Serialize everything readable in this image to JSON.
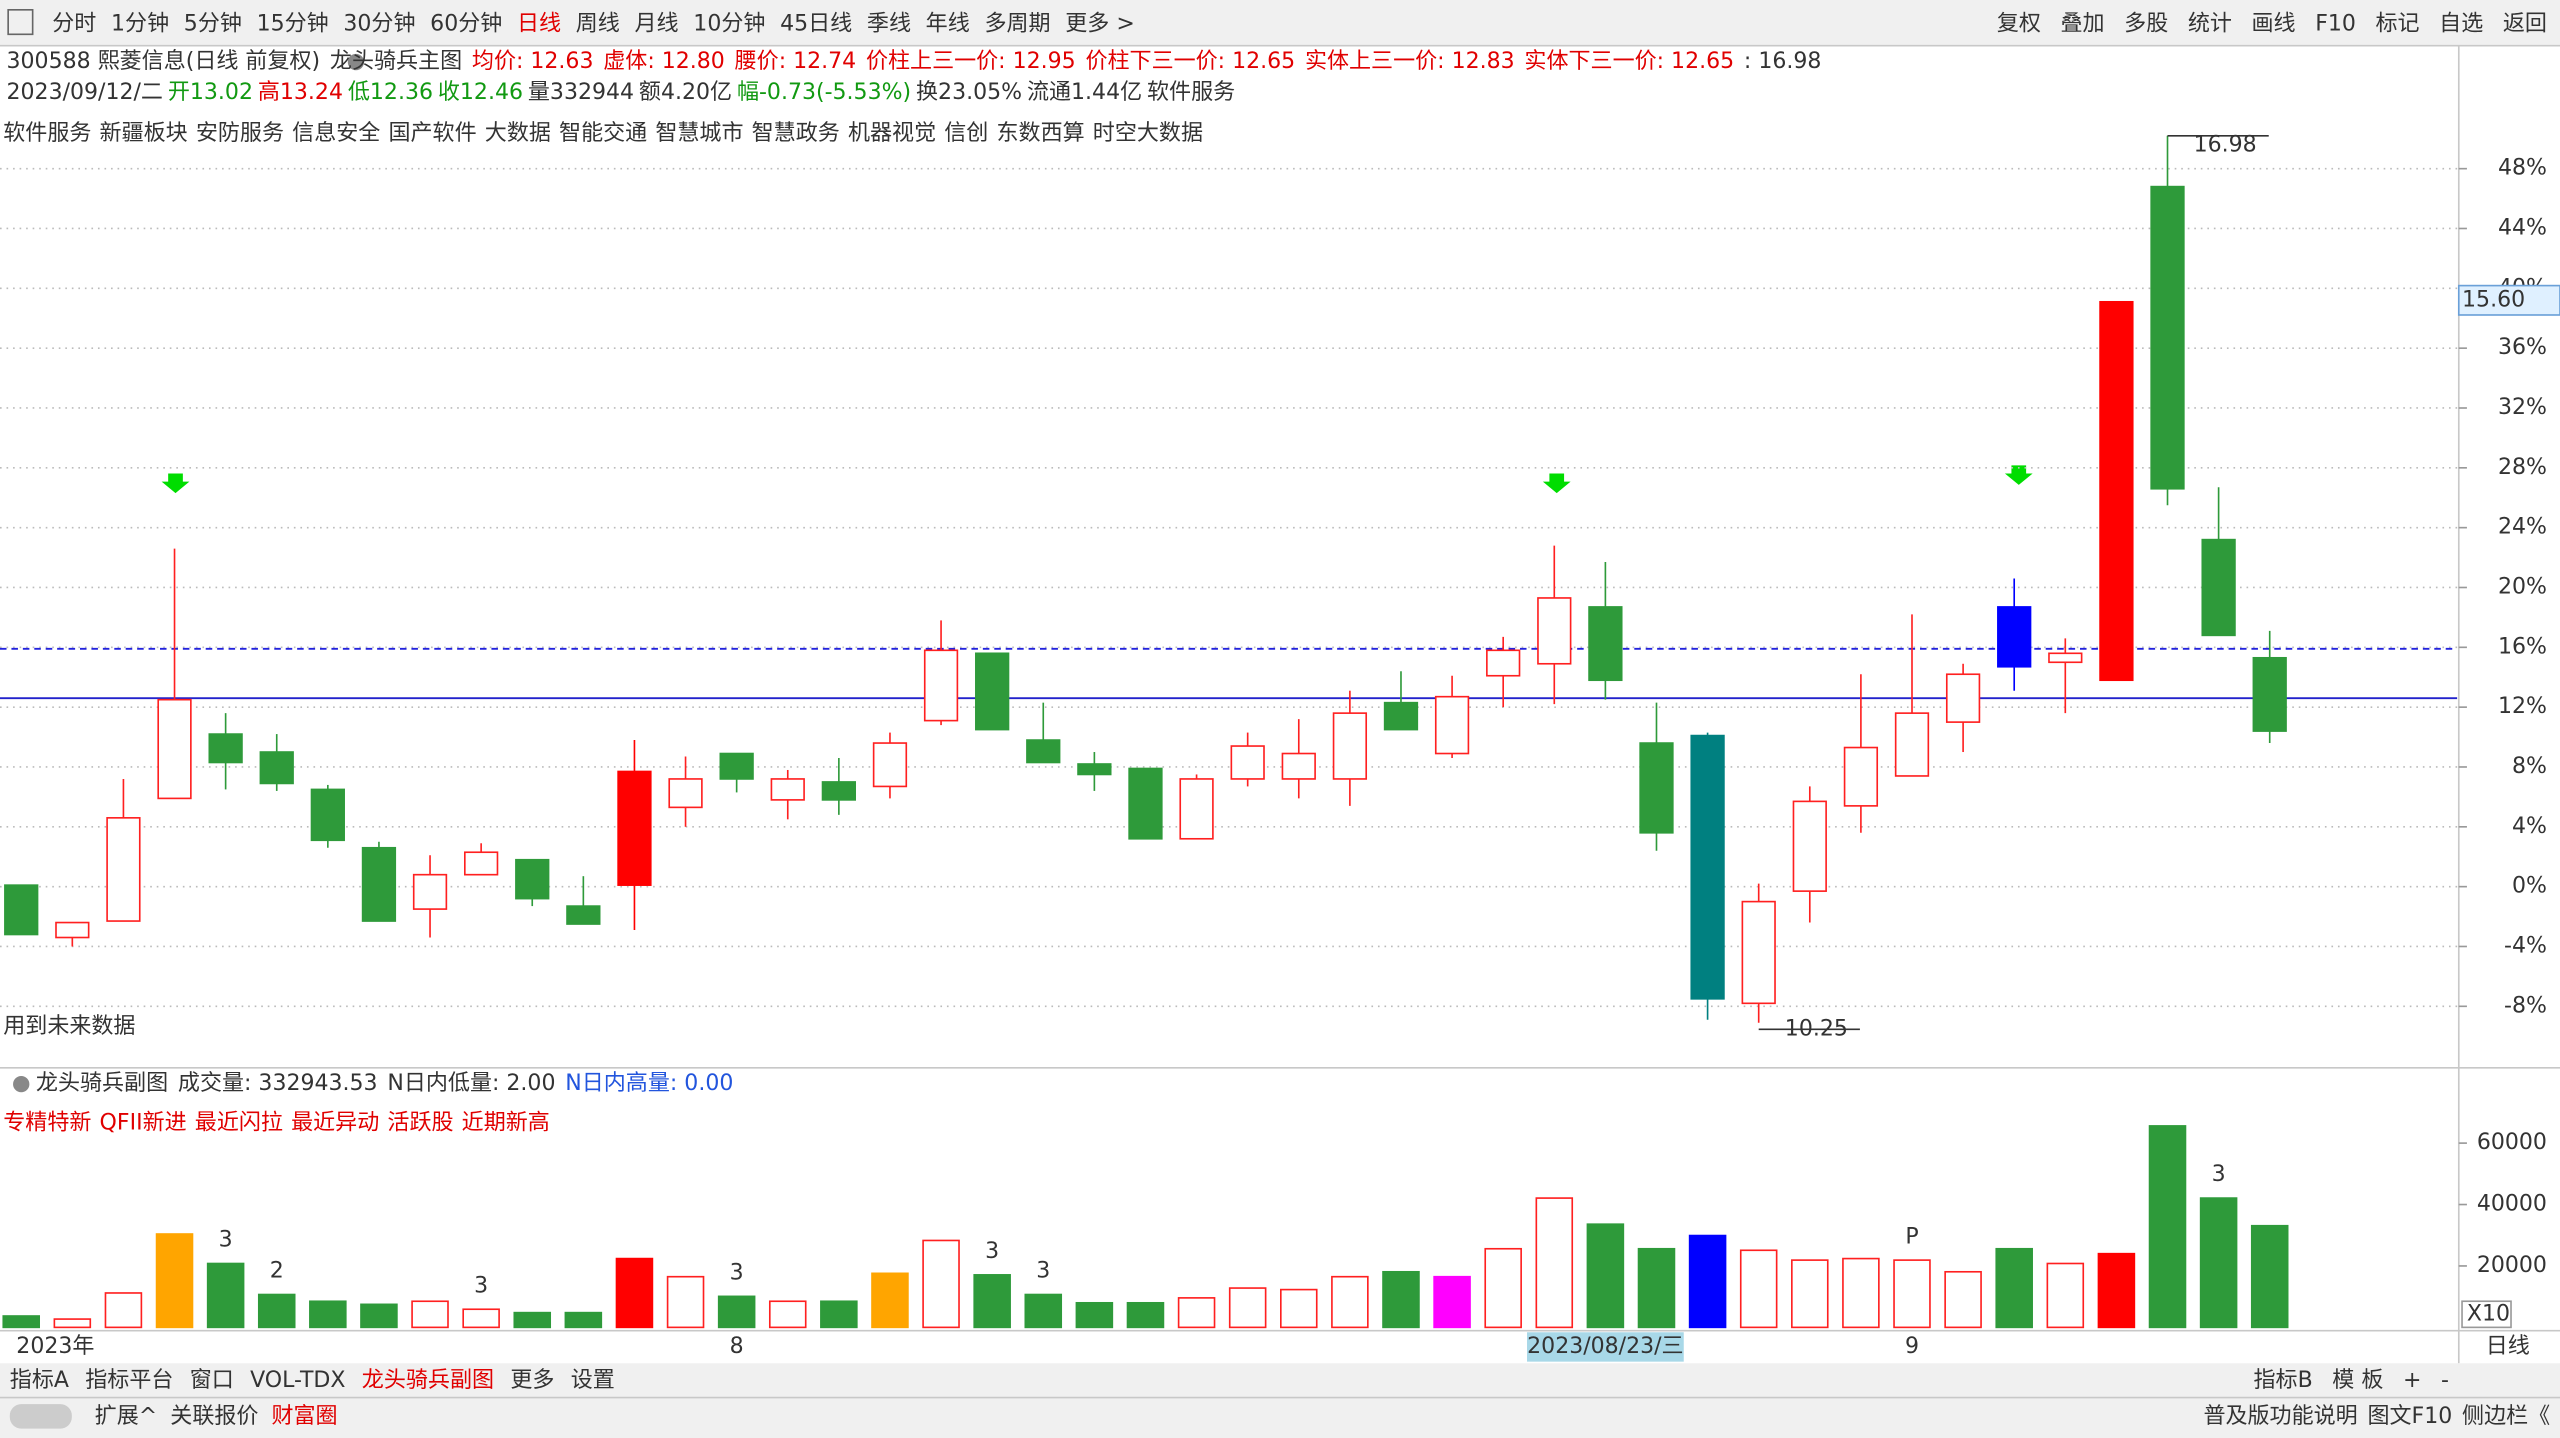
{
  "toolbar": {
    "tabs": [
      {
        "label": "分时",
        "active": false
      },
      {
        "label": "1分钟",
        "active": false
      },
      {
        "label": "5分钟",
        "active": false
      },
      {
        "label": "15分钟",
        "active": false
      },
      {
        "label": "30分钟",
        "active": false
      },
      {
        "label": "60分钟",
        "active": false
      },
      {
        "label": "日线",
        "active": true
      },
      {
        "label": "周线",
        "active": false
      },
      {
        "label": "月线",
        "active": false
      },
      {
        "label": "10分钟",
        "active": false
      },
      {
        "label": "45日线",
        "active": false
      },
      {
        "label": "季线",
        "active": false
      },
      {
        "label": "年线",
        "active": false
      },
      {
        "label": "多周期",
        "active": false
      },
      {
        "label": "更多 >",
        "active": false
      }
    ],
    "right": [
      "复权",
      "叠加",
      "多股",
      "统计",
      "画线",
      "F10",
      "标记",
      "自选",
      "返回"
    ]
  },
  "header": {
    "line1": [
      {
        "text": "300588 熙菱信息(日线 前复权)",
        "color": "#333333"
      },
      {
        "text": "龙头骑兵主图",
        "color": "#333333"
      },
      {
        "text": "均价: 12.63",
        "color": "#e00000"
      },
      {
        "text": "虚体: 12.80",
        "color": "#e00000"
      },
      {
        "text": "腰价: 12.74",
        "color": "#e00000"
      },
      {
        "text": "价柱上三一价: 12.95",
        "color": "#e00000"
      },
      {
        "text": "价柱下三一价: 12.65",
        "color": "#e00000"
      },
      {
        "text": "实体上三一价: 12.83",
        "color": "#e00000"
      },
      {
        "text": "实体下三一价: 12.65",
        "color": "#e00000"
      },
      {
        "text": ": 16.98",
        "color": "#333333"
      }
    ],
    "line2": [
      {
        "text": "2023/09/12/二",
        "color": "#333333"
      },
      {
        "text": "开13.02",
        "color": "#119911"
      },
      {
        "text": "高13.24",
        "color": "#e00000"
      },
      {
        "text": "低12.36",
        "color": "#119911"
      },
      {
        "text": "收12.46",
        "color": "#119911"
      },
      {
        "text": "量332944",
        "color": "#333333"
      },
      {
        "text": "额4.20亿",
        "color": "#333333"
      },
      {
        "text": "幅-0.73(-5.53%)",
        "color": "#119911"
      },
      {
        "text": "换23.05%",
        "color": "#333333"
      },
      {
        "text": "流通1.44亿",
        "color": "#333333"
      },
      {
        "text": "软件服务",
        "color": "#333333"
      }
    ],
    "concepts": [
      "软件服务",
      "新疆板块",
      "安防服务",
      "信息安全",
      "国产软件",
      "大数据",
      "智能交通",
      "智慧城市",
      "智慧政务",
      "机器视觉",
      "信创",
      "东数西算",
      "时空大数据"
    ],
    "note": "用到未来数据"
  },
  "chart_data": {
    "type": "candlestick",
    "categories": [
      "2023年",
      null,
      null,
      null,
      null,
      null,
      null,
      null,
      null,
      null,
      null,
      null,
      null,
      null,
      "8",
      null,
      null,
      null,
      null,
      null,
      null,
      null,
      null,
      null,
      null,
      null,
      null,
      null,
      null,
      null,
      null,
      "2023/08/23/三",
      null,
      null,
      null,
      null,
      null,
      "9",
      null,
      null,
      null,
      null,
      null,
      null,
      null
    ],
    "candles": [
      {
        "open": 0.1,
        "high": 0.1,
        "low": -3.2,
        "close": -3.2,
        "color": "#2e9a3a",
        "filled": true
      },
      {
        "open": -3.4,
        "high": -2.4,
        "low": -4.0,
        "close": -2.4,
        "color": "#ff2020",
        "filled": false
      },
      {
        "open": -2.3,
        "high": 7.2,
        "low": -2.3,
        "close": 4.6,
        "color": "#ff2020",
        "filled": false
      },
      {
        "open": 5.9,
        "high": 22.6,
        "low": 5.9,
        "close": 12.5,
        "color": "#ff2020",
        "filled": false
      },
      {
        "open": 10.2,
        "high": 11.6,
        "low": 6.5,
        "close": 8.3,
        "color": "#2e9a3a",
        "filled": true
      },
      {
        "open": 9.0,
        "high": 10.2,
        "low": 6.4,
        "close": 6.9,
        "color": "#2e9a3a",
        "filled": true
      },
      {
        "open": 6.5,
        "high": 6.8,
        "low": 2.6,
        "close": 3.1,
        "color": "#2e9a3a",
        "filled": true
      },
      {
        "open": 2.6,
        "high": 3.0,
        "low": -2.3,
        "close": -2.3,
        "color": "#2e9a3a",
        "filled": true
      },
      {
        "open": -1.5,
        "high": 2.1,
        "low": -3.4,
        "close": 0.8,
        "color": "#ff2020",
        "filled": false
      },
      {
        "open": 0.8,
        "high": 2.9,
        "low": 0.8,
        "close": 2.3,
        "color": "#ff2020",
        "filled": false
      },
      {
        "open": 1.8,
        "high": 1.8,
        "low": -1.3,
        "close": -0.8,
        "color": "#2e9a3a",
        "filled": true
      },
      {
        "open": -1.3,
        "high": 0.7,
        "low": -2.5,
        "close": -2.5,
        "color": "#2e9a3a",
        "filled": true
      },
      {
        "open": 0.1,
        "high": 9.8,
        "low": -2.9,
        "close": 7.7,
        "color": "#ff0000",
        "filled": true
      },
      {
        "open": 5.3,
        "high": 8.7,
        "low": 4.0,
        "close": 7.2,
        "color": "#ff2020",
        "filled": false
      },
      {
        "open": 8.9,
        "high": 8.9,
        "low": 6.3,
        "close": 7.2,
        "color": "#2e9a3a",
        "filled": true
      },
      {
        "open": 5.8,
        "high": 7.8,
        "low": 4.5,
        "close": 7.2,
        "color": "#ff2020",
        "filled": false
      },
      {
        "open": 7.0,
        "high": 8.6,
        "low": 4.8,
        "close": 5.8,
        "color": "#2e9a3a",
        "filled": true
      },
      {
        "open": 6.7,
        "high": 10.3,
        "low": 5.9,
        "close": 9.6,
        "color": "#ff2020",
        "filled": false
      },
      {
        "open": 11.1,
        "high": 17.8,
        "low": 10.8,
        "close": 15.8,
        "color": "#ff2020",
        "filled": false
      },
      {
        "open": 15.6,
        "high": 15.6,
        "low": 10.5,
        "close": 10.5,
        "color": "#2e9a3a",
        "filled": true
      },
      {
        "open": 9.8,
        "high": 12.3,
        "low": 8.3,
        "close": 8.3,
        "color": "#2e9a3a",
        "filled": true
      },
      {
        "open": 8.2,
        "high": 9.0,
        "low": 6.4,
        "close": 7.5,
        "color": "#2e9a3a",
        "filled": true
      },
      {
        "open": 7.9,
        "high": 7.9,
        "low": 3.2,
        "close": 3.2,
        "color": "#2e9a3a",
        "filled": true
      },
      {
        "open": 3.2,
        "high": 7.5,
        "low": 3.2,
        "close": 7.2,
        "color": "#ff2020",
        "filled": false
      },
      {
        "open": 7.2,
        "high": 10.3,
        "low": 6.7,
        "close": 9.4,
        "color": "#ff2020",
        "filled": false
      },
      {
        "open": 7.2,
        "high": 11.2,
        "low": 5.9,
        "close": 8.9,
        "color": "#ff2020",
        "filled": false
      },
      {
        "open": 7.2,
        "high": 13.1,
        "low": 5.4,
        "close": 11.6,
        "color": "#ff2020",
        "filled": false
      },
      {
        "open": 12.3,
        "high": 14.4,
        "low": 10.5,
        "close": 10.5,
        "color": "#2e9a3a",
        "filled": true
      },
      {
        "open": 8.9,
        "high": 14.1,
        "low": 8.6,
        "close": 12.7,
        "color": "#ff2020",
        "filled": false
      },
      {
        "open": 14.1,
        "high": 16.7,
        "low": 12.0,
        "close": 15.8,
        "color": "#ff2020",
        "filled": false
      },
      {
        "open": 14.9,
        "high": 22.8,
        "low": 12.2,
        "close": 19.3,
        "color": "#ff2020",
        "filled": false
      },
      {
        "open": 18.7,
        "high": 21.7,
        "low": 12.5,
        "close": 13.8,
        "color": "#2e9a3a",
        "filled": true
      },
      {
        "open": 9.6,
        "high": 12.3,
        "low": 2.4,
        "close": 3.6,
        "color": "#2e9a3a",
        "filled": true
      },
      {
        "open": 10.1,
        "high": 10.3,
        "low": -8.9,
        "close": -7.5,
        "color": "#008080",
        "filled": true
      },
      {
        "open": -7.8,
        "high": 0.2,
        "low": -9.1,
        "close": -1.0,
        "color": "#ff2020",
        "filled": false
      },
      {
        "open": -0.3,
        "high": 6.7,
        "low": -2.4,
        "close": 5.7,
        "color": "#ff2020",
        "filled": false
      },
      {
        "open": 5.4,
        "high": 14.2,
        "low": 3.6,
        "close": 9.3,
        "color": "#ff2020",
        "filled": false
      },
      {
        "open": 7.4,
        "high": 18.2,
        "low": 7.4,
        "close": 11.6,
        "color": "#ff2020",
        "filled": false
      },
      {
        "open": 11.0,
        "high": 14.9,
        "low": 9.0,
        "close": 14.2,
        "color": "#ff2020",
        "filled": false
      },
      {
        "open": 18.7,
        "high": 20.6,
        "low": 13.1,
        "close": 14.7,
        "color": "#0000ff",
        "filled": true
      },
      {
        "open": 15.0,
        "high": 16.6,
        "low": 11.6,
        "close": 15.6,
        "color": "#ff2020",
        "filled": false
      },
      {
        "open": 13.8,
        "high": 39.1,
        "low": 13.8,
        "close": 39.1,
        "color": "#ff0000",
        "filled": true
      },
      {
        "open": 46.8,
        "high": 50.2,
        "low": 25.5,
        "close": 26.6,
        "color": "#2e9a3a",
        "filled": true
      },
      {
        "open": 23.2,
        "high": 26.7,
        "low": 16.8,
        "close": 16.8,
        "color": "#2e9a3a",
        "filled": true
      },
      {
        "open": 15.3,
        "high": 17.1,
        "low": 9.6,
        "close": 10.4,
        "color": "#2e9a3a",
        "filled": true
      }
    ],
    "ylim": [
      -12,
      56
    ],
    "yticks": [
      {
        "value": 48,
        "label": "48%"
      },
      {
        "value": 44,
        "label": "44%"
      },
      {
        "value": 40,
        "label": "40%"
      },
      {
        "value": 36,
        "label": "36%"
      },
      {
        "value": 32,
        "label": "32%"
      },
      {
        "value": 28,
        "label": "28%"
      },
      {
        "value": 24,
        "label": "24%"
      },
      {
        "value": 20,
        "label": "20%"
      },
      {
        "value": 16,
        "label": "16%"
      },
      {
        "value": 12,
        "label": "12%"
      },
      {
        "value": 8,
        "label": "8%"
      },
      {
        "value": 4,
        "label": "4%"
      },
      {
        "value": 0,
        "label": "0%"
      },
      {
        "value": -4,
        "label": "-4%"
      },
      {
        "value": -8,
        "label": "-8%"
      }
    ],
    "grid": true,
    "ref_lines": [
      {
        "value": 15.9,
        "color": "#2222dd",
        "dashed": true
      },
      {
        "value": 12.6,
        "color": "#2222cc",
        "dashed": false
      }
    ],
    "cursor_label": {
      "value": 39.2,
      "label": "15.60"
    },
    "annotations": [
      {
        "candle": 42,
        "value": 50.2,
        "label": "16.98"
      },
      {
        "candle": 34,
        "value": -9.1,
        "label": "10.25"
      }
    ]
  },
  "sub_chart": {
    "title": "龙头骑兵副图",
    "stats": [
      {
        "text": "成交量: 332943.53",
        "color": "#333333"
      },
      {
        "text": "N日内低量: 2.00",
        "color": "#333333"
      },
      {
        "text": "N日内高量: 0.00",
        "color": "#2255dd"
      }
    ],
    "tags": [
      "专精特新",
      "QFII新进",
      "最近闪拉",
      "最近异动",
      "活跃股",
      "近期新高"
    ],
    "values": [
      3700,
      2700,
      11200,
      30400,
      20800,
      10700,
      8500,
      7500,
      8500,
      5900,
      4800,
      4800,
      22400,
      16500,
      10100,
      8500,
      8500,
      17600,
      28300,
      17100,
      10700,
      8000,
      8000,
      9600,
      12800,
      12300,
      16500,
      18100,
      16500,
      25600,
      42100,
      33600,
      25600,
      29900,
      25100,
      21900,
      22400,
      21900,
      18100,
      25600,
      20800,
      24000,
      65600,
      42100,
      33100
    ],
    "colors": [
      "#2e9a3a",
      "#ff2020",
      "#ff2020",
      "#ffa500",
      "#2e9a3a",
      "#2e9a3a",
      "#2e9a3a",
      "#2e9a3a",
      "#ff2020",
      "#ff2020",
      "#2e9a3a",
      "#2e9a3a",
      "#ff0000",
      "#ff2020",
      "#2e9a3a",
      "#ff2020",
      "#2e9a3a",
      "#ffa500",
      "#ff2020",
      "#2e9a3a",
      "#2e9a3a",
      "#2e9a3a",
      "#2e9a3a",
      "#ff2020",
      "#ff2020",
      "#ff2020",
      "#ff2020",
      "#2e9a3a",
      "#ff00ff",
      "#ff2020",
      "#ff2020",
      "#2e9a3a",
      "#2e9a3a",
      "#0000ff",
      "#ff2020",
      "#ff2020",
      "#ff2020",
      "#ff2020",
      "#ff2020",
      "#2e9a3a",
      "#ff2020",
      "#ff0000",
      "#2e9a3a",
      "#2e9a3a",
      "#2e9a3a"
    ],
    "filled": [
      true,
      false,
      false,
      true,
      true,
      true,
      true,
      true,
      false,
      false,
      true,
      true,
      true,
      false,
      true,
      false,
      true,
      true,
      false,
      true,
      true,
      true,
      true,
      false,
      false,
      false,
      false,
      true,
      true,
      false,
      false,
      true,
      true,
      true,
      false,
      false,
      false,
      false,
      false,
      true,
      false,
      true,
      true,
      true,
      true
    ],
    "labels": [
      null,
      null,
      null,
      null,
      "3",
      "2",
      null,
      null,
      null,
      "3",
      null,
      null,
      null,
      null,
      "3",
      null,
      null,
      null,
      null,
      "3",
      "3",
      null,
      null,
      null,
      null,
      null,
      null,
      null,
      null,
      null,
      null,
      null,
      null,
      null,
      null,
      null,
      null,
      "P",
      null,
      null,
      null,
      null,
      null,
      "3",
      null
    ],
    "ylim": [
      0,
      84000
    ],
    "yticks": [
      60000,
      40000,
      20000
    ],
    "scale_note": "X10"
  },
  "bottom_tabs": {
    "left": [
      "指标A",
      "指标平台",
      "窗口",
      "VOL-TDX",
      "龙头骑兵副图",
      "更多",
      "设置"
    ],
    "right": [
      "指标B",
      "模 板",
      "+",
      "-"
    ],
    "period": "日线"
  },
  "status_bar": {
    "left": [
      "扩展^",
      "关联报价",
      "财富圈"
    ],
    "right": [
      "普及版功能说明",
      "图文F10",
      "侧边栏《"
    ]
  }
}
